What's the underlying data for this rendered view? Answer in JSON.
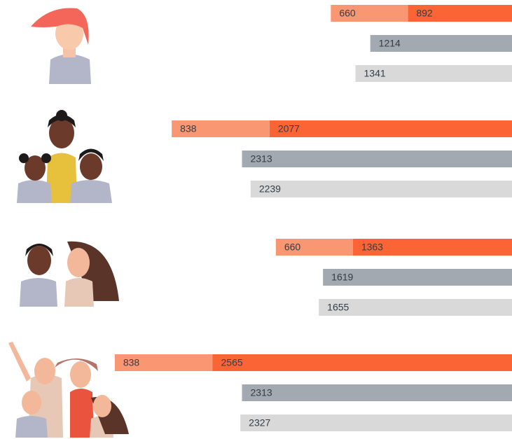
{
  "chart_data": {
    "type": "bar",
    "orientation": "horizontal",
    "reversed": true,
    "categories": [
      null,
      null,
      null,
      null
    ],
    "xlim": [
      0,
      4386
    ],
    "series": [
      {
        "color": "#f99772",
        "values": [
          660,
          838,
          660,
          838
        ]
      },
      {
        "color": "#fb6535",
        "values": [
          892,
          2077,
          1363,
          2565
        ]
      },
      {
        "color": "#a2a9b0",
        "values": [
          1214,
          2313,
          1619,
          2313
        ]
      },
      {
        "color": "#d9d9d9",
        "values": [
          1341,
          2239,
          1655,
          2327
        ]
      }
    ]
  }
}
